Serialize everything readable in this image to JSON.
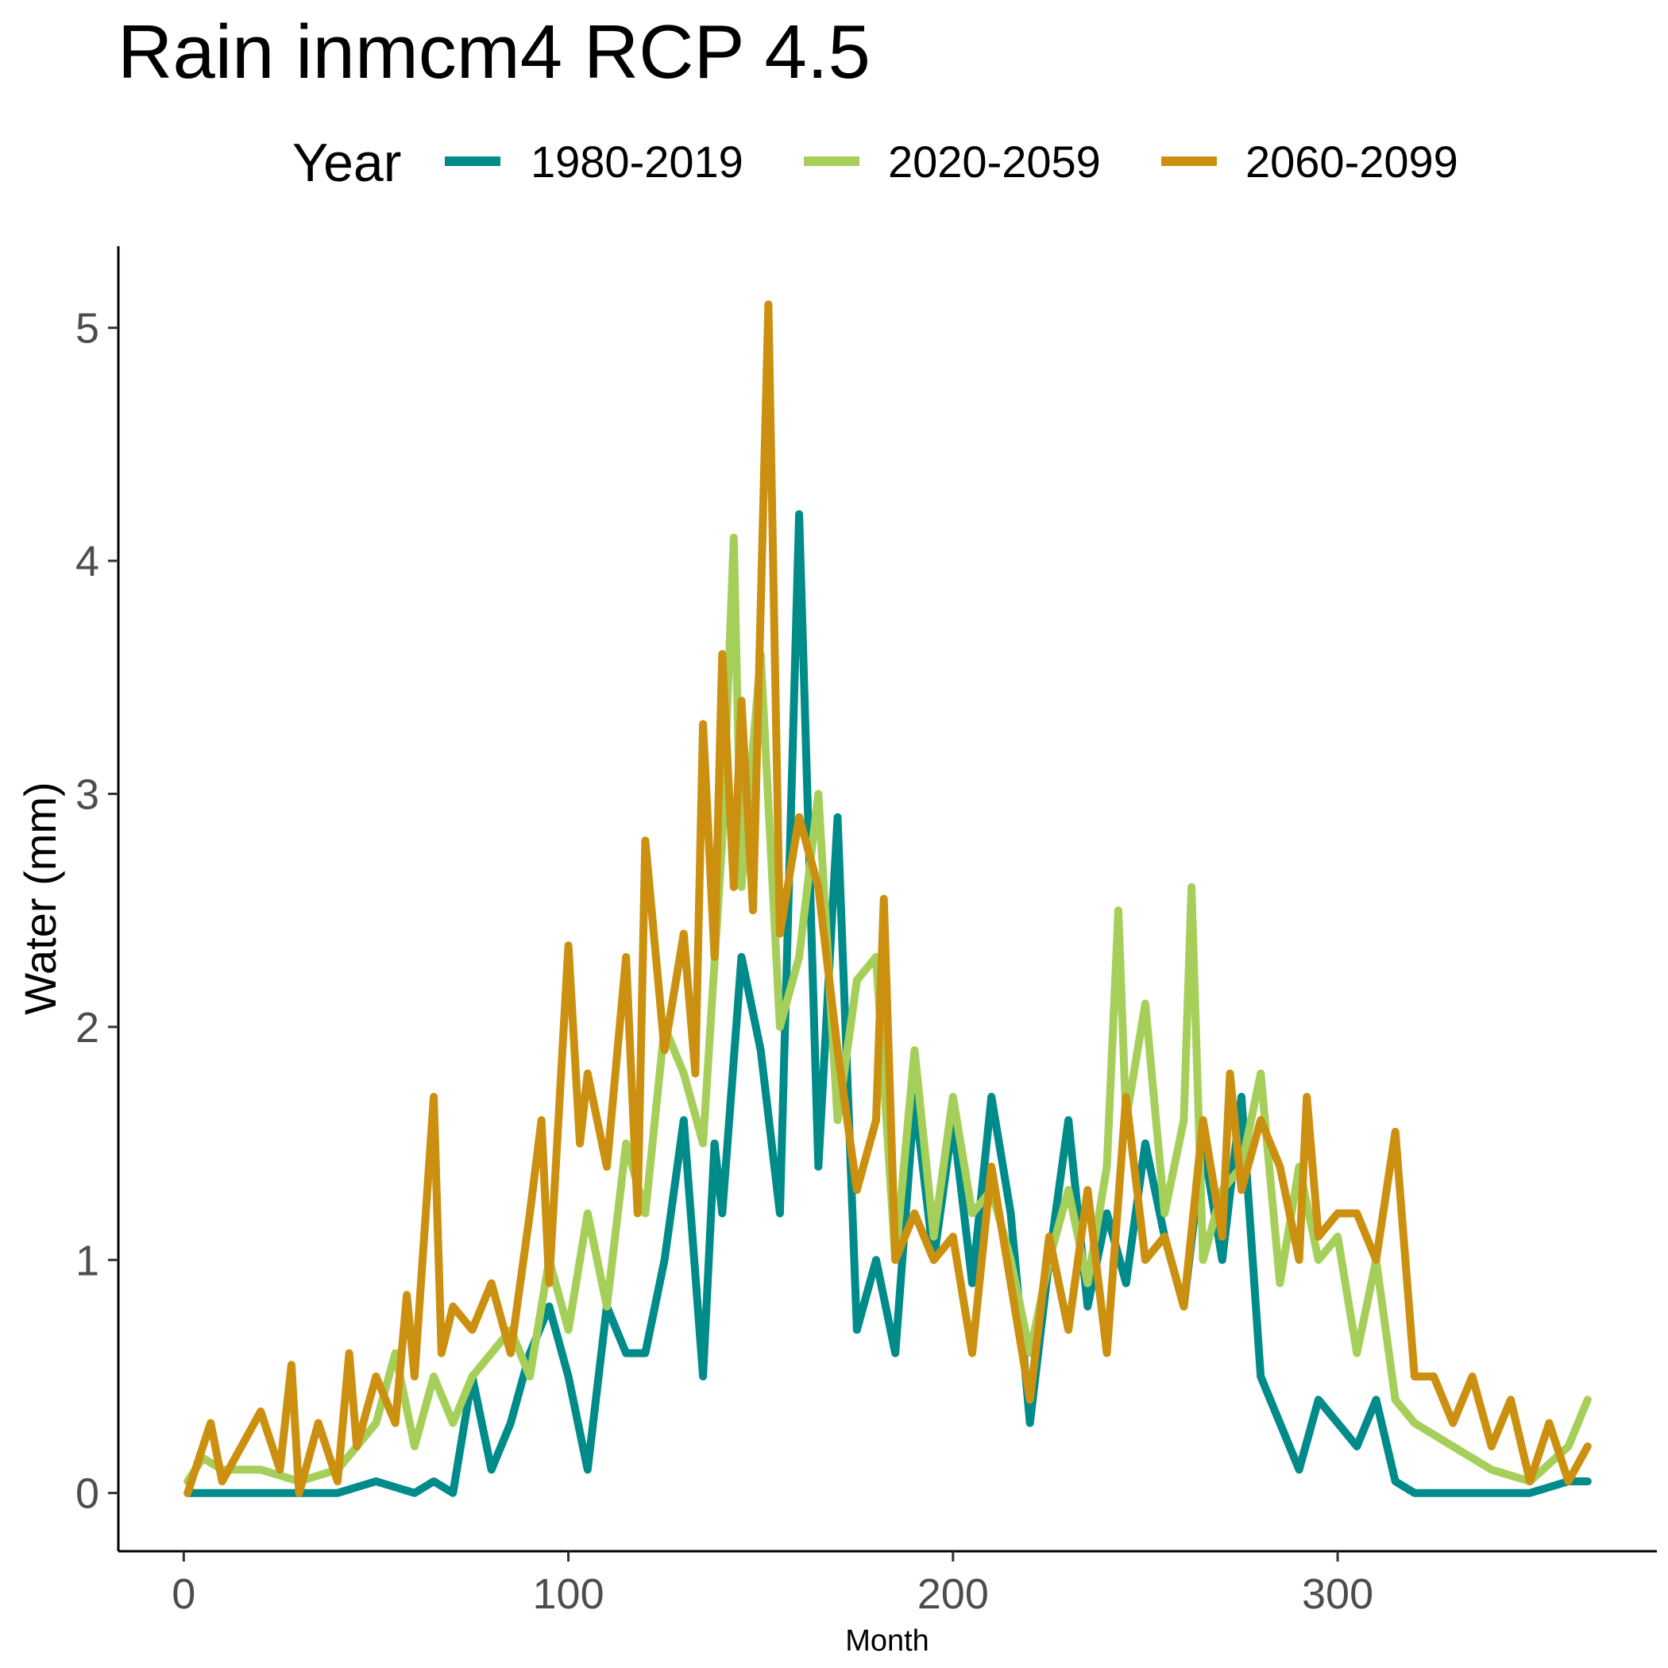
{
  "chart_data": {
    "type": "line",
    "title": "Rain inmcm4 RCP 4.5",
    "xlabel": "Month",
    "ylabel": "Water (mm)",
    "xlim": [
      -17,
      383
    ],
    "ylim": [
      -0.25,
      5.35
    ],
    "xticks": [
      0,
      100,
      200,
      300
    ],
    "yticks": [
      0,
      1,
      2,
      3,
      4,
      5
    ],
    "grid": false,
    "legend": {
      "title": "Year",
      "position": "top"
    },
    "series": [
      {
        "name": "1980-2019",
        "color": "#008b8b",
        "x": [
          1,
          10,
          20,
          30,
          40,
          50,
          60,
          65,
          70,
          75,
          80,
          85,
          90,
          95,
          100,
          105,
          110,
          115,
          120,
          125,
          130,
          135,
          138,
          140,
          145,
          150,
          155,
          160,
          165,
          170,
          175,
          180,
          185,
          190,
          195,
          200,
          205,
          210,
          215,
          220,
          225,
          230,
          235,
          240,
          245,
          250,
          255,
          260,
          265,
          270,
          275,
          280,
          285,
          290,
          295,
          300,
          305,
          310,
          315,
          320,
          330,
          340,
          350,
          360,
          365
        ],
        "values": [
          0.0,
          0.0,
          0.0,
          0.0,
          0.0,
          0.05,
          0.0,
          0.05,
          0.0,
          0.5,
          0.1,
          0.3,
          0.6,
          0.8,
          0.5,
          0.1,
          0.8,
          0.6,
          0.6,
          1.0,
          1.6,
          0.5,
          1.5,
          1.2,
          2.3,
          1.9,
          1.2,
          4.2,
          1.4,
          2.9,
          0.7,
          1.0,
          0.6,
          1.7,
          1.0,
          1.6,
          0.9,
          1.7,
          1.2,
          0.3,
          1.0,
          1.6,
          0.8,
          1.2,
          0.9,
          1.5,
          1.1,
          0.8,
          1.5,
          1.0,
          1.7,
          0.5,
          0.3,
          0.1,
          0.4,
          0.3,
          0.2,
          0.4,
          0.05,
          0.0,
          0.0,
          0.0,
          0.0,
          0.05,
          0.05
        ]
      },
      {
        "name": "2020-2059",
        "color": "#a6cf5a",
        "x": [
          1,
          5,
          10,
          20,
          30,
          40,
          50,
          55,
          60,
          65,
          70,
          75,
          80,
          85,
          90,
          95,
          100,
          105,
          110,
          115,
          120,
          125,
          130,
          135,
          140,
          143,
          145,
          150,
          155,
          160,
          165,
          170,
          175,
          180,
          185,
          190,
          195,
          200,
          205,
          210,
          215,
          220,
          225,
          230,
          235,
          240,
          243,
          245,
          250,
          255,
          260,
          262,
          265,
          270,
          275,
          280,
          285,
          290,
          295,
          300,
          305,
          310,
          315,
          320,
          330,
          340,
          350,
          360,
          365
        ],
        "values": [
          0.05,
          0.15,
          0.1,
          0.1,
          0.05,
          0.1,
          0.3,
          0.6,
          0.2,
          0.5,
          0.3,
          0.5,
          0.6,
          0.7,
          0.5,
          1.0,
          0.7,
          1.2,
          0.8,
          1.5,
          1.2,
          2.0,
          1.8,
          1.5,
          2.8,
          4.1,
          2.6,
          3.6,
          2.0,
          2.3,
          3.0,
          1.6,
          2.2,
          2.3,
          1.0,
          1.9,
          1.1,
          1.7,
          1.2,
          1.3,
          1.0,
          0.6,
          1.0,
          1.3,
          0.9,
          1.4,
          2.5,
          1.6,
          2.1,
          1.2,
          1.6,
          2.6,
          1.0,
          1.3,
          1.4,
          1.8,
          0.9,
          1.4,
          1.0,
          1.1,
          0.6,
          1.0,
          0.4,
          0.3,
          0.2,
          0.1,
          0.05,
          0.2,
          0.4
        ]
      },
      {
        "name": "2060-2099",
        "color": "#cc9010",
        "x": [
          1,
          7,
          10,
          15,
          20,
          25,
          28,
          30,
          35,
          40,
          43,
          45,
          50,
          55,
          58,
          60,
          65,
          67,
          70,
          75,
          80,
          85,
          90,
          93,
          95,
          100,
          103,
          105,
          110,
          115,
          118,
          120,
          125,
          130,
          133,
          135,
          138,
          140,
          143,
          145,
          148,
          152,
          155,
          160,
          165,
          170,
          175,
          180,
          182,
          185,
          190,
          195,
          200,
          205,
          210,
          215,
          220,
          225,
          230,
          235,
          240,
          245,
          250,
          255,
          260,
          265,
          270,
          272,
          275,
          280,
          285,
          290,
          292,
          295,
          300,
          305,
          310,
          315,
          320,
          325,
          330,
          335,
          340,
          345,
          350,
          355,
          360,
          365
        ],
        "values": [
          0.0,
          0.3,
          0.05,
          0.2,
          0.35,
          0.1,
          0.55,
          0.0,
          0.3,
          0.05,
          0.6,
          0.2,
          0.5,
          0.3,
          0.85,
          0.5,
          1.7,
          0.6,
          0.8,
          0.7,
          0.9,
          0.6,
          1.2,
          1.6,
          0.9,
          2.35,
          1.5,
          1.8,
          1.4,
          2.3,
          1.2,
          2.8,
          1.9,
          2.4,
          1.8,
          3.3,
          2.3,
          3.6,
          2.6,
          3.4,
          2.5,
          5.1,
          2.4,
          2.9,
          2.6,
          1.9,
          1.3,
          1.6,
          2.55,
          1.0,
          1.2,
          1.0,
          1.1,
          0.6,
          1.4,
          0.9,
          0.4,
          1.1,
          0.7,
          1.3,
          0.6,
          1.7,
          1.0,
          1.1,
          0.8,
          1.6,
          1.1,
          1.8,
          1.3,
          1.6,
          1.4,
          1.0,
          1.7,
          1.1,
          1.2,
          1.2,
          1.0,
          1.55,
          0.5,
          0.5,
          0.3,
          0.5,
          0.2,
          0.4,
          0.05,
          0.3,
          0.05,
          0.2
        ]
      }
    ]
  }
}
